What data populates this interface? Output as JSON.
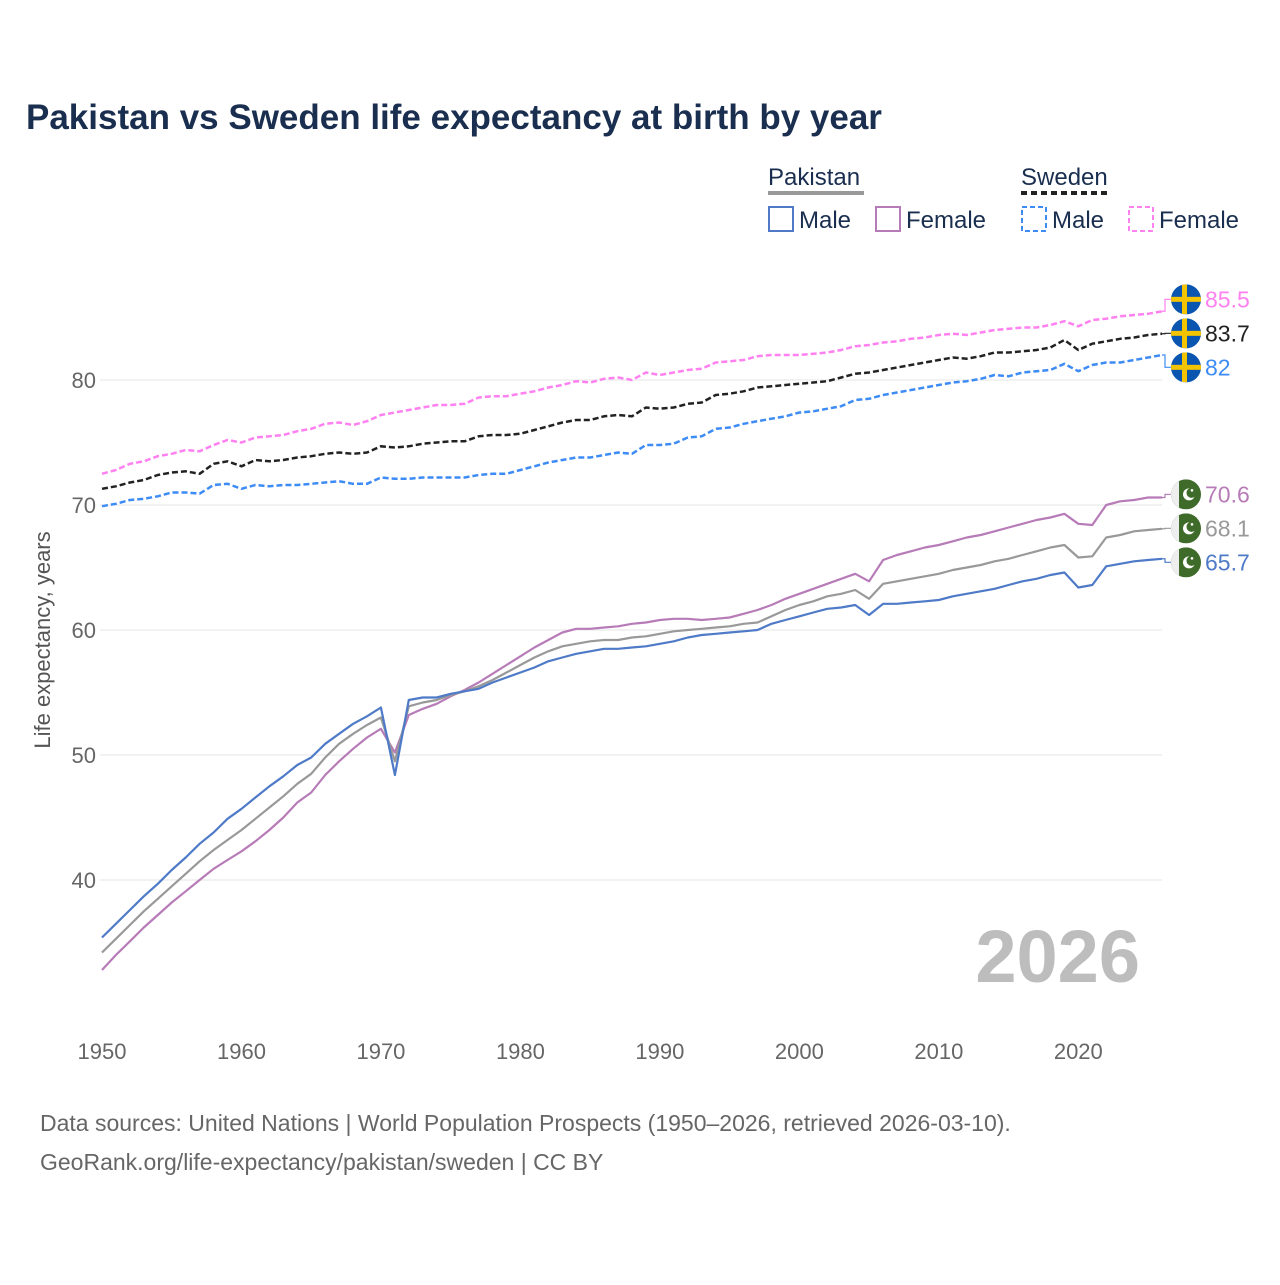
{
  "chart_data": {
    "type": "line",
    "title": "Pakistan vs Sweden life expectancy at birth by year",
    "xlabel": "",
    "ylabel": "Life expectancy, years",
    "xlim": [
      1950,
      2026
    ],
    "ylim": [
      30,
      90
    ],
    "x_ticks": [
      "1950",
      "1960",
      "1970",
      "1980",
      "1990",
      "2000",
      "2010",
      "2020"
    ],
    "y_ticks": [
      "40",
      "50",
      "60",
      "70",
      "80"
    ],
    "grid": "horizontal",
    "watermark_year": "2026",
    "legend": {
      "placement": "top-right",
      "groups": [
        {
          "name": "Pakistan",
          "items": [
            "Male",
            "Female"
          ]
        },
        {
          "name": "Sweden",
          "items": [
            "Male",
            "Female"
          ]
        }
      ]
    },
    "start_year": 1950,
    "series": [
      {
        "name": "Sweden Female",
        "country": "Sweden",
        "color": "#ff80f0",
        "dashed": true,
        "end_label": "85.5",
        "values": [
          72.5,
          72.8,
          73.3,
          73.5,
          73.9,
          74.1,
          74.4,
          74.3,
          74.8,
          75.2,
          75.0,
          75.4,
          75.5,
          75.6,
          75.9,
          76.1,
          76.5,
          76.6,
          76.4,
          76.7,
          77.2,
          77.4,
          77.6,
          77.8,
          78.0,
          78.0,
          78.1,
          78.6,
          78.7,
          78.7,
          78.9,
          79.1,
          79.4,
          79.6,
          79.9,
          79.8,
          80.1,
          80.2,
          80.0,
          80.6,
          80.4,
          80.6,
          80.8,
          80.9,
          81.4,
          81.5,
          81.6,
          81.9,
          82.0,
          82.0,
          82.0,
          82.1,
          82.2,
          82.4,
          82.7,
          82.8,
          83.0,
          83.1,
          83.3,
          83.4,
          83.6,
          83.7,
          83.6,
          83.8,
          84.0,
          84.1,
          84.2,
          84.2,
          84.4,
          84.7,
          84.3,
          84.8,
          84.9,
          85.1,
          85.2,
          85.3,
          85.5
        ]
      },
      {
        "name": "Sweden Both",
        "country": "Sweden",
        "color": "#222222",
        "dashed": true,
        "end_label": "83.7",
        "values": [
          71.3,
          71.5,
          71.8,
          72.0,
          72.4,
          72.6,
          72.7,
          72.5,
          73.3,
          73.5,
          73.1,
          73.6,
          73.5,
          73.6,
          73.8,
          73.9,
          74.1,
          74.2,
          74.1,
          74.2,
          74.7,
          74.6,
          74.7,
          74.9,
          75.0,
          75.1,
          75.1,
          75.5,
          75.6,
          75.6,
          75.7,
          76.0,
          76.3,
          76.6,
          76.8,
          76.8,
          77.1,
          77.2,
          77.1,
          77.8,
          77.7,
          77.8,
          78.1,
          78.2,
          78.8,
          78.9,
          79.1,
          79.4,
          79.5,
          79.6,
          79.7,
          79.8,
          79.9,
          80.2,
          80.5,
          80.6,
          80.8,
          81.0,
          81.2,
          81.4,
          81.6,
          81.8,
          81.7,
          81.9,
          82.2,
          82.2,
          82.3,
          82.4,
          82.6,
          83.2,
          82.4,
          82.9,
          83.1,
          83.3,
          83.4,
          83.6,
          83.7
        ]
      },
      {
        "name": "Sweden Male",
        "country": "Sweden",
        "color": "#3d8bf5",
        "dashed": true,
        "end_label": "82",
        "values": [
          69.9,
          70.1,
          70.4,
          70.5,
          70.7,
          71.0,
          71.0,
          70.9,
          71.6,
          71.7,
          71.3,
          71.6,
          71.5,
          71.6,
          71.6,
          71.7,
          71.8,
          71.9,
          71.7,
          71.7,
          72.2,
          72.1,
          72.1,
          72.2,
          72.2,
          72.2,
          72.2,
          72.4,
          72.5,
          72.5,
          72.8,
          73.1,
          73.4,
          73.6,
          73.8,
          73.8,
          74.0,
          74.2,
          74.1,
          74.8,
          74.8,
          74.9,
          75.4,
          75.5,
          76.1,
          76.2,
          76.5,
          76.7,
          76.9,
          77.1,
          77.4,
          77.5,
          77.7,
          77.9,
          78.4,
          78.5,
          78.8,
          79.0,
          79.2,
          79.4,
          79.6,
          79.8,
          79.9,
          80.1,
          80.4,
          80.3,
          80.6,
          80.7,
          80.8,
          81.3,
          80.7,
          81.2,
          81.4,
          81.4,
          81.6,
          81.8,
          82.0
        ]
      },
      {
        "name": "Pakistan Female",
        "country": "Pakistan",
        "color": "#b77bb7",
        "dashed": false,
        "end_label": "70.6",
        "values": [
          32.8,
          34.0,
          35.1,
          36.2,
          37.2,
          38.2,
          39.1,
          40.0,
          40.9,
          41.6,
          42.3,
          43.1,
          44.0,
          45.0,
          46.2,
          47.0,
          48.4,
          49.5,
          50.5,
          51.4,
          52.1,
          50.2,
          53.2,
          53.7,
          54.1,
          54.7,
          55.2,
          55.8,
          56.5,
          57.2,
          57.9,
          58.6,
          59.2,
          59.8,
          60.1,
          60.1,
          60.2,
          60.3,
          60.5,
          60.6,
          60.8,
          60.9,
          60.9,
          60.8,
          60.9,
          61.0,
          61.3,
          61.6,
          62.0,
          62.5,
          62.9,
          63.3,
          63.7,
          64.1,
          64.5,
          63.9,
          65.6,
          66.0,
          66.3,
          66.6,
          66.8,
          67.1,
          67.4,
          67.6,
          67.9,
          68.2,
          68.5,
          68.8,
          69.0,
          69.3,
          68.5,
          68.4,
          70.0,
          70.3,
          70.4,
          70.6,
          70.6
        ]
      },
      {
        "name": "Pakistan Both",
        "country": "Pakistan",
        "color": "#999999",
        "dashed": false,
        "end_label": "68.1",
        "values": [
          34.2,
          35.3,
          36.4,
          37.5,
          38.5,
          39.5,
          40.5,
          41.5,
          42.4,
          43.2,
          44.0,
          44.9,
          45.8,
          46.7,
          47.7,
          48.5,
          49.8,
          50.9,
          51.7,
          52.4,
          53.0,
          49.5,
          53.9,
          54.2,
          54.4,
          54.8,
          55.1,
          55.5,
          56.0,
          56.6,
          57.2,
          57.8,
          58.3,
          58.7,
          58.9,
          59.1,
          59.2,
          59.2,
          59.4,
          59.5,
          59.7,
          59.9,
          60.0,
          60.1,
          60.2,
          60.3,
          60.5,
          60.6,
          61.1,
          61.6,
          62.0,
          62.3,
          62.7,
          62.9,
          63.2,
          62.5,
          63.7,
          63.9,
          64.1,
          64.3,
          64.5,
          64.8,
          65.0,
          65.2,
          65.5,
          65.7,
          66.0,
          66.3,
          66.6,
          66.8,
          65.8,
          65.9,
          67.4,
          67.6,
          67.9,
          68.0,
          68.1
        ]
      },
      {
        "name": "Pakistan Male",
        "country": "Pakistan",
        "color": "#4e7ac7",
        "dashed": false,
        "end_label": "65.7",
        "values": [
          35.4,
          36.5,
          37.6,
          38.7,
          39.7,
          40.8,
          41.8,
          42.9,
          43.8,
          44.9,
          45.7,
          46.6,
          47.5,
          48.3,
          49.2,
          49.8,
          50.9,
          51.7,
          52.5,
          53.1,
          53.8,
          48.4,
          54.4,
          54.6,
          54.6,
          54.9,
          55.1,
          55.3,
          55.8,
          56.2,
          56.6,
          57.0,
          57.5,
          57.8,
          58.1,
          58.3,
          58.5,
          58.5,
          58.6,
          58.7,
          58.9,
          59.1,
          59.4,
          59.6,
          59.7,
          59.8,
          59.9,
          60.0,
          60.5,
          60.8,
          61.1,
          61.4,
          61.7,
          61.8,
          62.0,
          61.2,
          62.1,
          62.1,
          62.2,
          62.3,
          62.4,
          62.7,
          62.9,
          63.1,
          63.3,
          63.6,
          63.9,
          64.1,
          64.4,
          64.6,
          63.4,
          63.6,
          65.1,
          65.3,
          65.5,
          65.6,
          65.7
        ]
      }
    ]
  },
  "colors": {
    "title": "#1a2e4f",
    "pakistan_legend_bar": "#999999",
    "sweden_legend_bar": "#222222",
    "sweden_flag_blue": "#0a55b0",
    "sweden_flag_yellow": "#f5c400",
    "pakistan_flag_green": "#3f6b2a"
  },
  "footer": {
    "line1": "Data sources: United Nations | World Population Prospects (1950–2026, retrieved 2026-03-10).",
    "line2": "GeoRank.org/life-expectancy/pakistan/sweden | CC BY"
  }
}
